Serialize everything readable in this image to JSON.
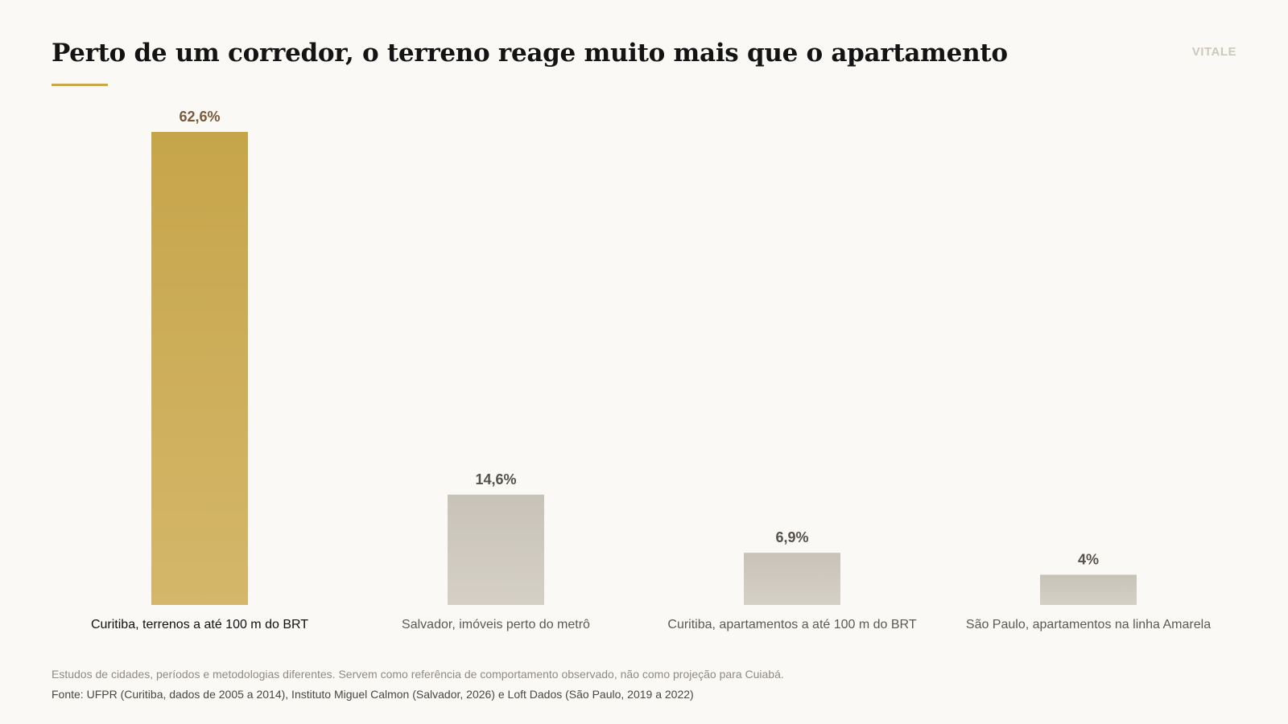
{
  "header": {
    "title": "Perto de um corredor, o terreno reage muito mais que o apartamento",
    "brand": "VITALE"
  },
  "colors": {
    "highlight_top": "#c6a54a",
    "highlight_bottom": "#d4b76a",
    "neutral_top": "#c8c3b8",
    "neutral_bottom": "#d5d0c6",
    "highlight_value_text": "#7a5a3c",
    "neutral_value_text": "#55524d",
    "highlight_label_text": "#111111",
    "neutral_label_text": "#5c5953"
  },
  "chart_data": {
    "type": "bar",
    "categories": [
      "Curitiba, terrenos a até 100 m do BRT",
      "Salvador, imóveis perto do metrô",
      "Curitiba, apartamentos a até 100 m do BRT",
      "São Paulo, apartamentos na linha Amarela"
    ],
    "values": [
      62.6,
      14.6,
      6.9,
      4
    ],
    "value_labels": [
      "62,6%",
      "14,6%",
      "6,9%",
      "4%"
    ],
    "highlighted": [
      true,
      false,
      false,
      false
    ],
    "ylim": [
      0,
      62.6
    ],
    "grid": false,
    "legend": "none"
  },
  "footer": {
    "note": "Estudos de cidades, períodos e metodologias diferentes. Servem como referência de comportamento observado, não como projeção para Cuiabá.",
    "source": "Fonte: UFPR (Curitiba, dados de 2005 a 2014), Instituto Miguel Calmon (Salvador, 2026) e Loft Dados (São Paulo, 2019 a 2022)"
  }
}
